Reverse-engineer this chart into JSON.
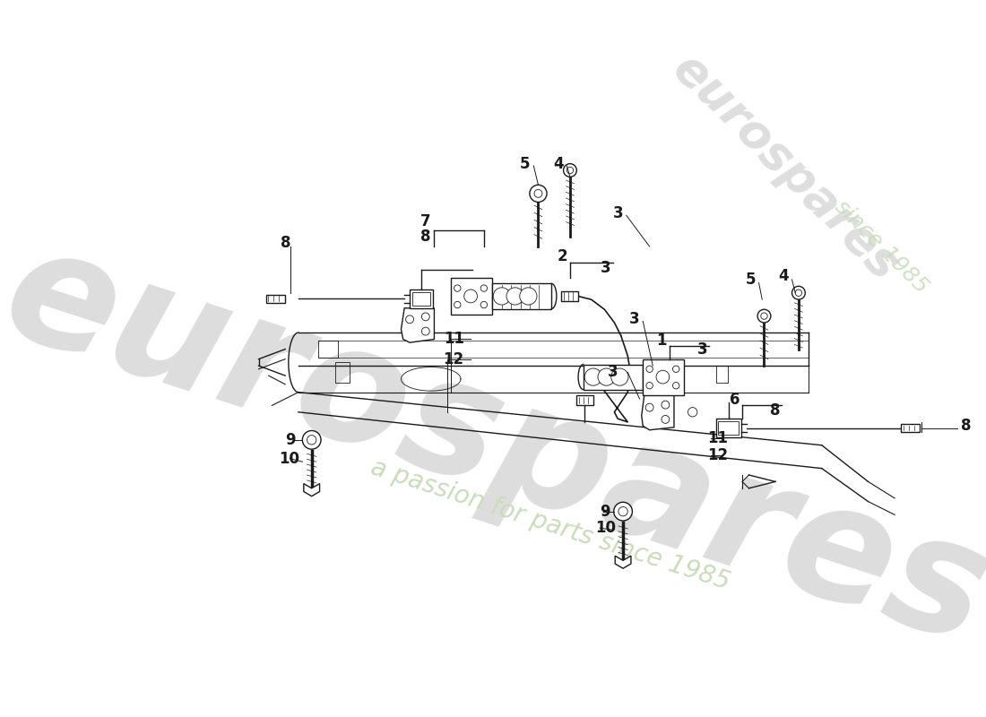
{
  "bg_color": "#ffffff",
  "line_color": "#1a1a1a",
  "lw": 1.0,
  "tlw": 0.6,
  "wm1": "eurospares",
  "wm2": "a passion for parts since 1985",
  "wm1_color": "#dddddd",
  "wm2_color": "#c8ddb8",
  "wm_since": "since 1985",
  "fig_w": 11.0,
  "fig_h": 8.0
}
